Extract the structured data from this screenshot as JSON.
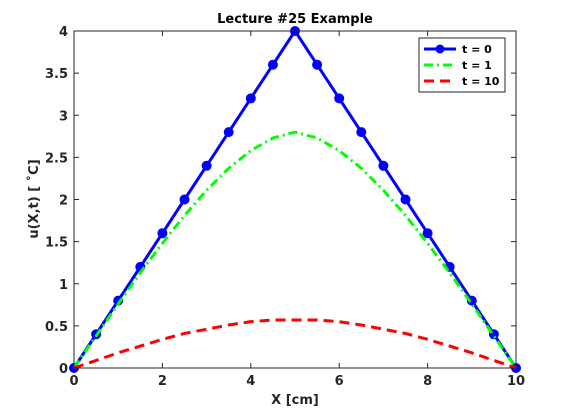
{
  "chart_data": {
    "type": "line",
    "title": "Lecture #25 Example",
    "xlabel": "X [cm]",
    "ylabel": "u(X,t)   [ ˚C]",
    "xlim": [
      0,
      10
    ],
    "ylim": [
      0,
      4
    ],
    "xticks": [
      0,
      2,
      4,
      6,
      8,
      10
    ],
    "yticks": [
      0,
      0.5,
      1,
      1.5,
      2,
      2.5,
      3,
      3.5,
      4
    ],
    "xtick_labels": [
      "0",
      "2",
      "4",
      "6",
      "8",
      "10"
    ],
    "ytick_labels": [
      "0",
      "0.5",
      "1",
      "1.5",
      "2",
      "2.5",
      "3",
      "3.5",
      "4"
    ],
    "grid": false,
    "legend_position": "top-right",
    "series": [
      {
        "name": "t = 0",
        "color": "#0000ff",
        "style": "solid-markers",
        "x": [
          0,
          0.5,
          1,
          1.5,
          2,
          2.5,
          3,
          3.5,
          4,
          4.5,
          5,
          5.5,
          6,
          6.5,
          7,
          7.5,
          8,
          8.5,
          9,
          9.5,
          10
        ],
        "y": [
          0,
          0.4,
          0.8,
          1.2,
          1.6,
          2.0,
          2.4,
          2.8,
          3.2,
          3.6,
          4.0,
          3.6,
          3.2,
          2.8,
          2.4,
          2.0,
          1.6,
          1.2,
          0.8,
          0.4,
          0
        ]
      },
      {
        "name": "t = 1",
        "color": "#00ff00",
        "style": "dash-dot",
        "x": [
          0,
          0.5,
          1,
          1.5,
          2,
          2.5,
          3,
          3.5,
          4,
          4.5,
          5,
          5.5,
          6,
          6.5,
          7,
          7.5,
          8,
          8.5,
          9,
          9.5,
          10
        ],
        "y": [
          0,
          0.38,
          0.76,
          1.13,
          1.48,
          1.81,
          2.11,
          2.37,
          2.58,
          2.73,
          2.8,
          2.73,
          2.58,
          2.37,
          2.11,
          1.81,
          1.48,
          1.13,
          0.76,
          0.38,
          0
        ]
      },
      {
        "name": "t = 10",
        "color": "#ff0000",
        "style": "dashed",
        "x": [
          0,
          0.5,
          1,
          1.5,
          2,
          2.5,
          3,
          3.5,
          4,
          4.5,
          5,
          5.5,
          6,
          6.5,
          7,
          7.5,
          8,
          8.5,
          9,
          9.5,
          10
        ],
        "y": [
          0,
          0.09,
          0.18,
          0.26,
          0.34,
          0.41,
          0.46,
          0.51,
          0.55,
          0.57,
          0.57,
          0.57,
          0.55,
          0.51,
          0.46,
          0.41,
          0.34,
          0.26,
          0.18,
          0.09,
          0
        ]
      }
    ]
  }
}
